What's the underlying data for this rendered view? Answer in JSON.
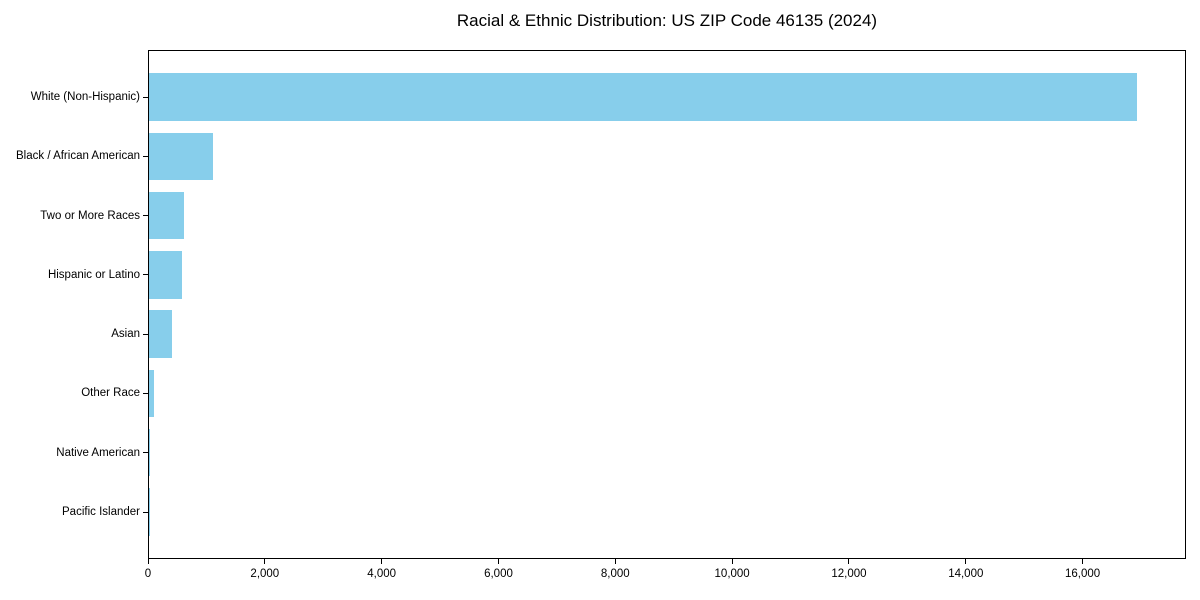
{
  "title": "Racial & Ethnic Distribution: US ZIP Code 46135 (2024)",
  "colors": {
    "bar": "#87CEEB",
    "axis": "#000000",
    "text": "#000000",
    "background": "#ffffff"
  },
  "chart_data": {
    "type": "bar",
    "orientation": "horizontal",
    "title": "Racial & Ethnic Distribution: US ZIP Code 46135 (2024)",
    "xlabel": "",
    "ylabel": "",
    "categories": [
      "White (Non-Hispanic)",
      "Black / African American",
      "Two or More Races",
      "Hispanic or Latino",
      "Asian",
      "Other Race",
      "Native American",
      "Pacific Islander"
    ],
    "values": [
      16920,
      1100,
      600,
      570,
      390,
      90,
      20,
      5
    ],
    "bar_color": "#87CEEB",
    "xlim": [
      0,
      17770
    ],
    "x_ticks": [
      0,
      2000,
      4000,
      6000,
      8000,
      10000,
      12000,
      14000,
      16000
    ],
    "x_tick_labels": [
      "0",
      "2,000",
      "4,000",
      "6,000",
      "8,000",
      "10,000",
      "12,000",
      "14,000",
      "16,000"
    ],
    "grid": false,
    "legend": "none"
  }
}
